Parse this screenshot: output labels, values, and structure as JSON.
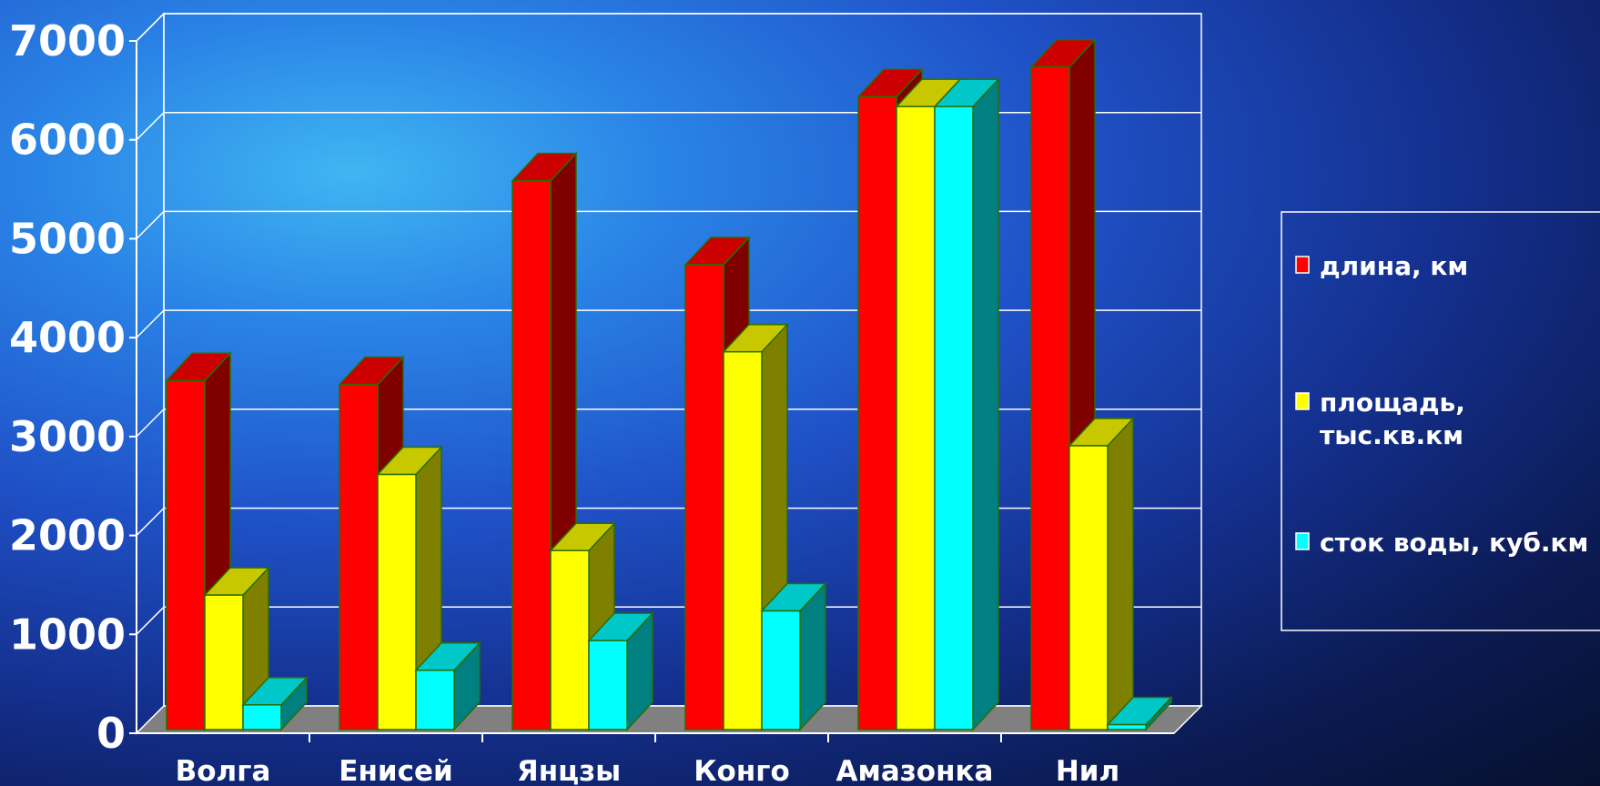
{
  "chart_data": {
    "type": "bar",
    "categories": [
      "Волга",
      "Енисей",
      "Янцзы",
      "Конго",
      "Амазонка",
      "Нил"
    ],
    "series": [
      {
        "name": "длина, км",
        "values": [
          3530,
          3490,
          5550,
          4700,
          6400,
          6700
        ],
        "color": "#ff0000",
        "side": "#800000",
        "top": "#cc0000"
      },
      {
        "name": "площадь, тыс.кв.км",
        "name_lines": [
          "площадь,",
          "тыс.кв.км"
        ],
        "values": [
          1360,
          2580,
          1810,
          3820,
          6300,
          2870
        ],
        "color": "#ffff00",
        "side": "#7f7f00",
        "top": "#c8c800"
      },
      {
        "name": "сток воды, куб.км",
        "values": [
          250,
          600,
          900,
          1200,
          6300,
          50
        ],
        "color": "#00ffff",
        "side": "#008080",
        "top": "#00c8c8"
      }
    ],
    "yticks": [
      0,
      1000,
      2000,
      3000,
      4000,
      5000,
      6000,
      7000
    ],
    "ylim": [
      0,
      7000
    ],
    "grid": true,
    "legend_position": "right",
    "floor_color": "#808080",
    "title": "",
    "xlabel": "",
    "ylabel": ""
  }
}
